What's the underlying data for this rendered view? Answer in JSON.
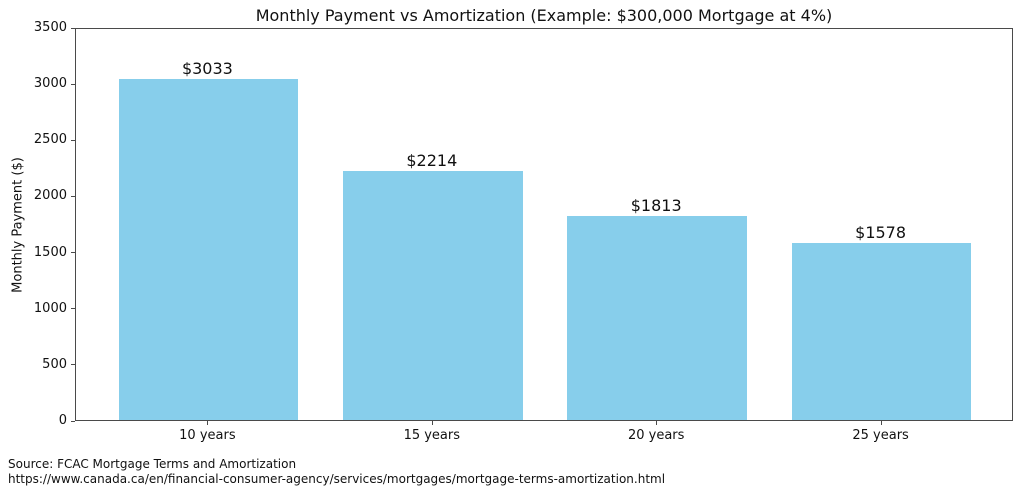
{
  "chart_data": {
    "type": "bar",
    "title": "Monthly Payment vs Amortization (Example: $300,000 Mortgage at 4%)",
    "categories": [
      "10 years",
      "15 years",
      "20 years",
      "25 years"
    ],
    "values": [
      3033,
      2214,
      1813,
      1578
    ],
    "value_labels": [
      "$3033",
      "$2214",
      "$1813",
      "$1578"
    ],
    "xlabel": "",
    "ylabel": "Monthly Payment ($)",
    "ylim": [
      0,
      3500
    ],
    "yticks": [
      0,
      500,
      1000,
      1500,
      2000,
      2500,
      3000,
      3500
    ],
    "bar_color": "#87CEEB",
    "grid": false,
    "legend_position": "none"
  },
  "footer": {
    "source_line": "Source: FCAC Mortgage Terms and Amortization",
    "url_line": "https://www.canada.ca/en/financial-consumer-agency/services/mortgages/mortgage-terms-amortization.html"
  }
}
